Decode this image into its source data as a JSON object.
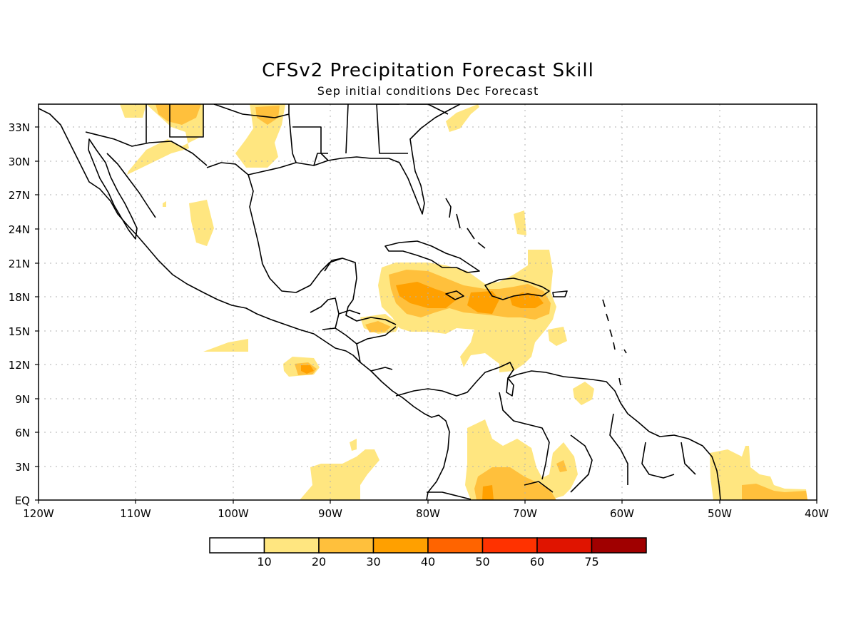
{
  "title": "CFSv2 Precipitation Forecast Skill",
  "subtitle": "Sep initial conditions  Dec Forecast",
  "lat_labels": [
    "33N",
    "30N",
    "27N",
    "24N",
    "21N",
    "18N",
    "15N",
    "12N",
    "9N",
    "6N",
    "3N",
    "EQ"
  ],
  "lon_labels": [
    "120W",
    "110W",
    "100W",
    "90W",
    "80W",
    "70W",
    "60W",
    "50W",
    "40W"
  ],
  "colorbar": {
    "labels": [
      "10",
      "20",
      "30",
      "40",
      "50",
      "60",
      "75"
    ],
    "colors": [
      "#ffffff",
      "#ffe680",
      "#ffc03c",
      "#ffa000",
      "#ff6400",
      "#ff3200",
      "#e01400",
      "#a00000"
    ]
  }
}
